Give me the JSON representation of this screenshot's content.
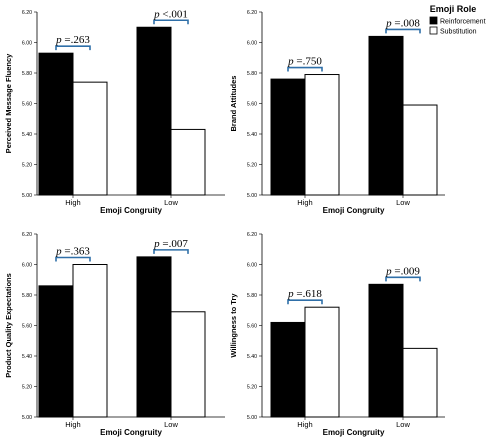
{
  "legend": {
    "title": "Emoji Role",
    "items": [
      {
        "label": "Reinforcement",
        "color": "#000000"
      },
      {
        "label": "Substitution",
        "color": "#ffffff"
      }
    ],
    "placement": "top-right"
  },
  "chart_data": [
    {
      "type": "bar",
      "categories": [
        "High",
        "Low"
      ],
      "xlabel": "Emoji Congruity",
      "ylabel": "Perceived Message Fluency",
      "ylim": [
        5.0,
        6.2
      ],
      "yticks": [
        "5.00",
        "5.20",
        "5.40",
        "5.60",
        "5.80",
        "6.00",
        "6.20"
      ],
      "series": [
        {
          "name": "Reinforcement",
          "values": [
            5.93,
            6.1
          ]
        },
        {
          "name": "Substitution",
          "values": [
            5.74,
            5.43
          ]
        }
      ],
      "annotations": [
        {
          "italic": "p",
          "text": "=.263"
        },
        {
          "italic": "p",
          "text": "<.001"
        }
      ]
    },
    {
      "type": "bar",
      "categories": [
        "High",
        "Low"
      ],
      "xlabel": "Emoji Congruity",
      "ylabel": "Brand Attitudes",
      "ylim": [
        5.0,
        6.2
      ],
      "yticks": [
        "5.00",
        "5.20",
        "5.40",
        "5.60",
        "5.80",
        "6.00",
        "6.20"
      ],
      "series": [
        {
          "name": "Reinforcement",
          "values": [
            5.76,
            6.04
          ]
        },
        {
          "name": "Substitution",
          "values": [
            5.79,
            5.59
          ]
        }
      ],
      "annotations": [
        {
          "italic": "p",
          "text": "=.750"
        },
        {
          "italic": "p",
          "text": "=.008"
        }
      ]
    },
    {
      "type": "bar",
      "categories": [
        "High",
        "Low"
      ],
      "xlabel": "Emoji Congruity",
      "ylabel": "Product Quality Expectations",
      "ylim": [
        5.0,
        6.2
      ],
      "yticks": [
        "5.00",
        "5.20",
        "5.40",
        "5.60",
        "5.80",
        "6.00",
        "6.20"
      ],
      "series": [
        {
          "name": "Reinforcement",
          "values": [
            5.86,
            6.05
          ]
        },
        {
          "name": "Substitution",
          "values": [
            6.0,
            5.69
          ]
        }
      ],
      "annotations": [
        {
          "italic": "p",
          "text": "=.363"
        },
        {
          "italic": "p",
          "text": "=.007"
        }
      ]
    },
    {
      "type": "bar",
      "categories": [
        "High",
        "Low"
      ],
      "xlabel": "Emoji Congruity",
      "ylabel": "Willingness to Try",
      "ylim": [
        5.0,
        6.2
      ],
      "yticks": [
        "5.00",
        "5.20",
        "5.40",
        "5.60",
        "5.80",
        "6.00",
        "6.20"
      ],
      "series": [
        {
          "name": "Reinforcement",
          "values": [
            5.62,
            5.87
          ]
        },
        {
          "name": "Substitution",
          "values": [
            5.72,
            5.45
          ]
        }
      ],
      "annotations": [
        {
          "italic": "p",
          "text": "=.618"
        },
        {
          "italic": "p",
          "text": "=.009"
        }
      ]
    }
  ]
}
